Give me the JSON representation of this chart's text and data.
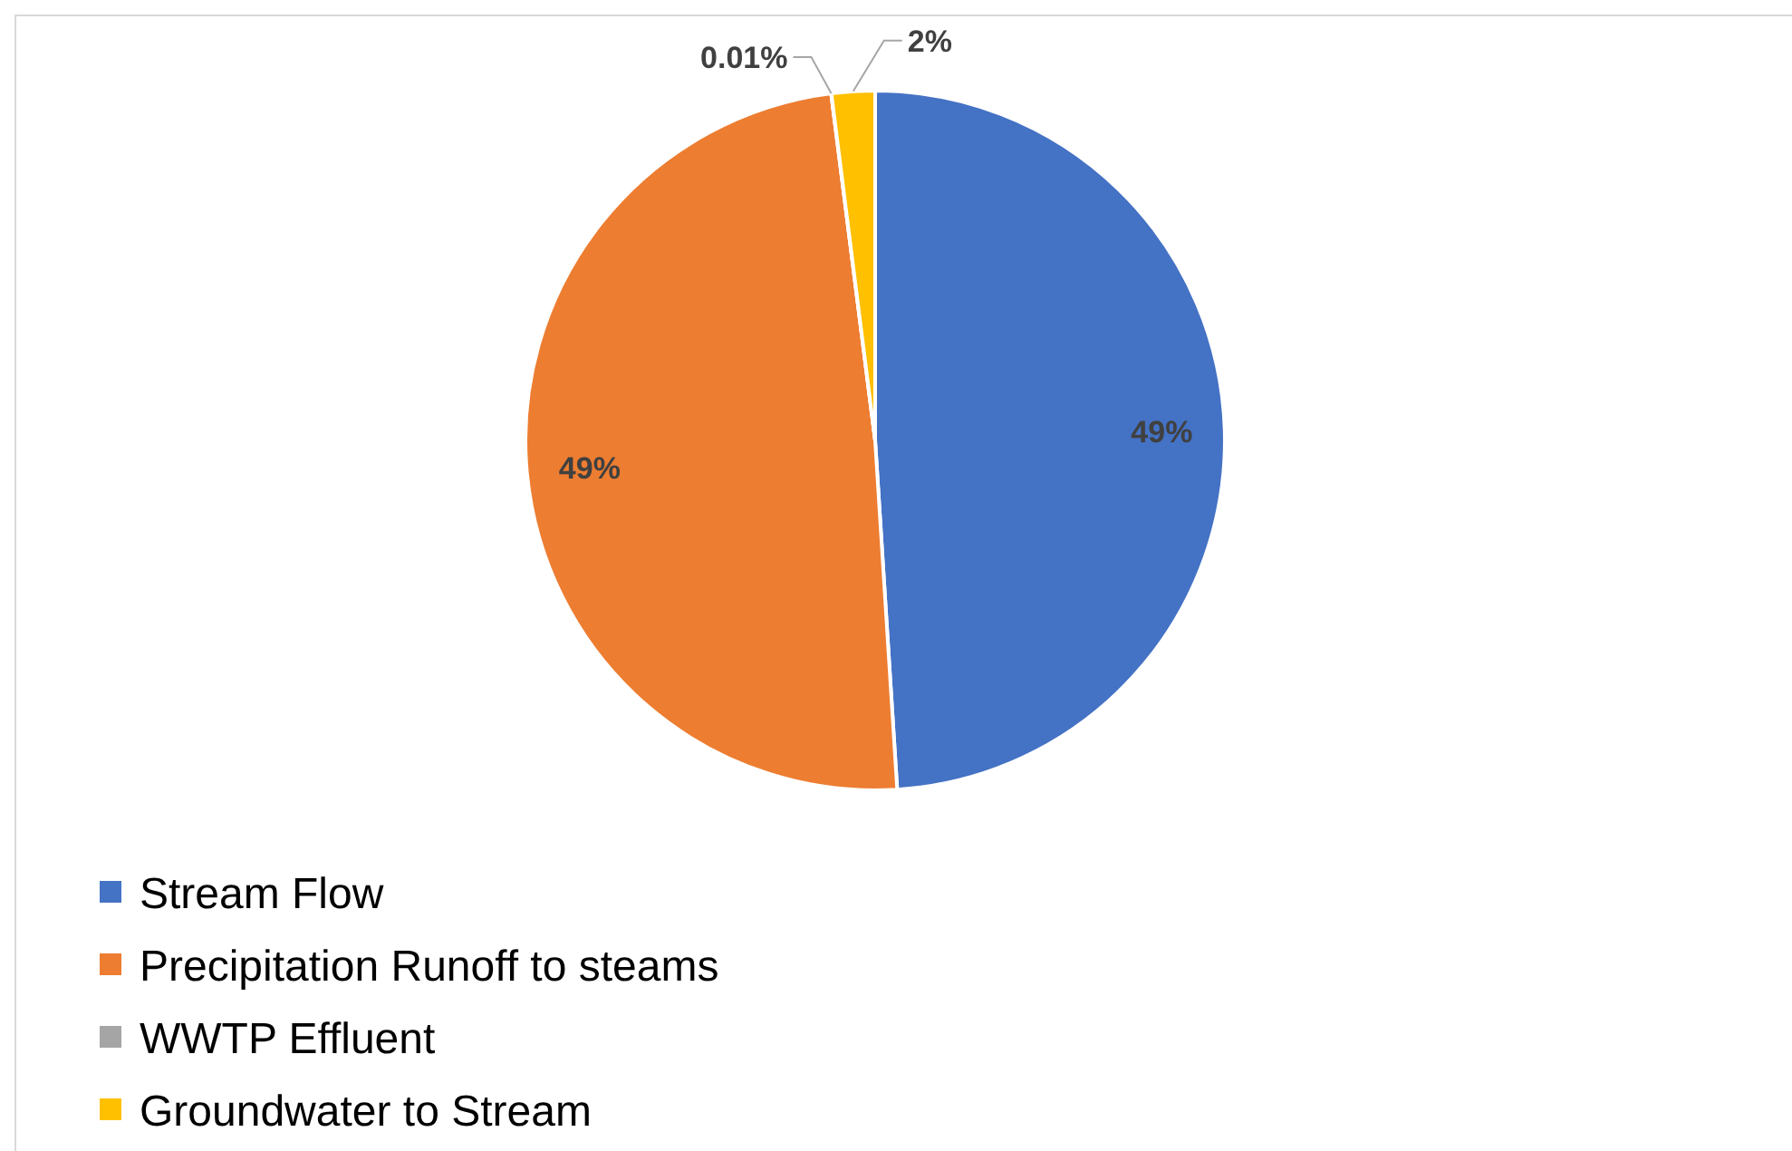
{
  "chart_data": {
    "type": "pie",
    "categories": [
      "Stream Flow",
      "Precipitation Runoff to steams",
      "WWTP Effluent",
      "Groundwater to Stream"
    ],
    "values": [
      49,
      49,
      0.01,
      2
    ],
    "colors": [
      "#4472c4",
      "#ed7d31",
      "#a5a5a5",
      "#ffc000"
    ],
    "value_labels": [
      "49%",
      "49%",
      "0.01%",
      "2%"
    ],
    "legend": "bottom"
  }
}
